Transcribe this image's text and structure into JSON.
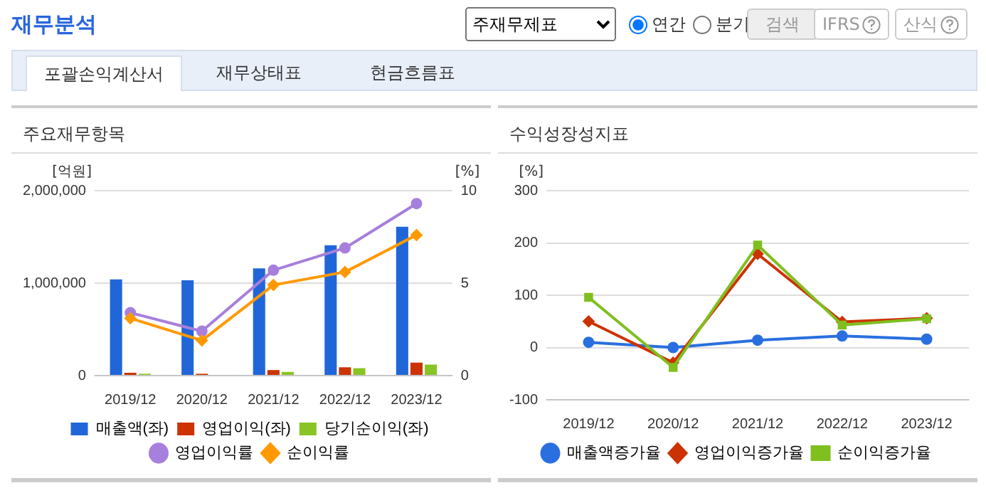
{
  "chart_data": [
    {
      "type": "bar",
      "title": "주요재무항목",
      "ylabel": "[억원]",
      "y2label": "[%]",
      "annotations": [
        "재무분석",
        "주재무제표",
        "연간",
        "분기",
        "검색",
        "IFRS",
        "산식",
        "포괄손익계산서",
        "재무상태표",
        "현금흐름표"
      ],
      "categories": [
        "2019/12",
        "2020/12",
        "2021/12",
        "2022/12",
        "2023/12"
      ],
      "series": [
        {
          "name": "매출액(좌)",
          "type": "bar",
          "color": "#2166d9",
          "values": [
            1040000,
            1030000,
            1160000,
            1410000,
            1610000
          ]
        },
        {
          "name": "영업이익(좌)",
          "type": "bar",
          "color": "#cc3300",
          "values": [
            30000,
            20000,
            60000,
            90000,
            140000
          ]
        },
        {
          "name": "당기순이익(좌)",
          "type": "bar",
          "color": "#88c425",
          "values": [
            20000,
            0,
            40000,
            80000,
            120000
          ]
        },
        {
          "name": "영업이익률",
          "type": "line",
          "axis": "y2",
          "marker": "circle",
          "color": "#a77fdc",
          "values": [
            3.4,
            2.4,
            5.7,
            6.9,
            9.3
          ]
        },
        {
          "name": "순이익률",
          "type": "line",
          "axis": "y2",
          "marker": "diamond",
          "color": "#ff9900",
          "values": [
            3.1,
            1.9,
            4.9,
            5.6,
            7.6
          ]
        }
      ],
      "ylim": [
        0,
        2000000
      ],
      "yticks": [
        {
          "value": 0,
          "label": "0"
        },
        {
          "value": 1000000,
          "label": "1,000,000"
        },
        {
          "value": 2000000,
          "label": "2,000,000"
        }
      ],
      "y2lim": [
        0,
        10
      ],
      "y2ticks": [
        0,
        5,
        10
      ],
      "grid": "y",
      "legend": "bottom"
    },
    {
      "type": "line",
      "title": "수익성장성지표",
      "ylabel": "[%]",
      "categories": [
        "2019/12",
        "2020/12",
        "2021/12",
        "2022/12",
        "2023/12"
      ],
      "series": [
        {
          "name": "매출액증가율",
          "marker": "circle",
          "color": "#2a6fe0",
          "values": [
            10,
            0,
            14,
            22,
            16
          ]
        },
        {
          "name": "영업이익증가율",
          "marker": "diamond",
          "color": "#cc3300",
          "values": [
            50,
            -29,
            179,
            49,
            56
          ]
        },
        {
          "name": "순이익증가율",
          "marker": "square",
          "color": "#7fbf1f",
          "values": [
            96,
            -38,
            196,
            43,
            55
          ]
        }
      ],
      "ylim": [
        -100,
        300
      ],
      "yticks": [
        -100,
        0,
        100,
        200,
        300
      ],
      "grid": "y",
      "legend": "bottom"
    }
  ]
}
